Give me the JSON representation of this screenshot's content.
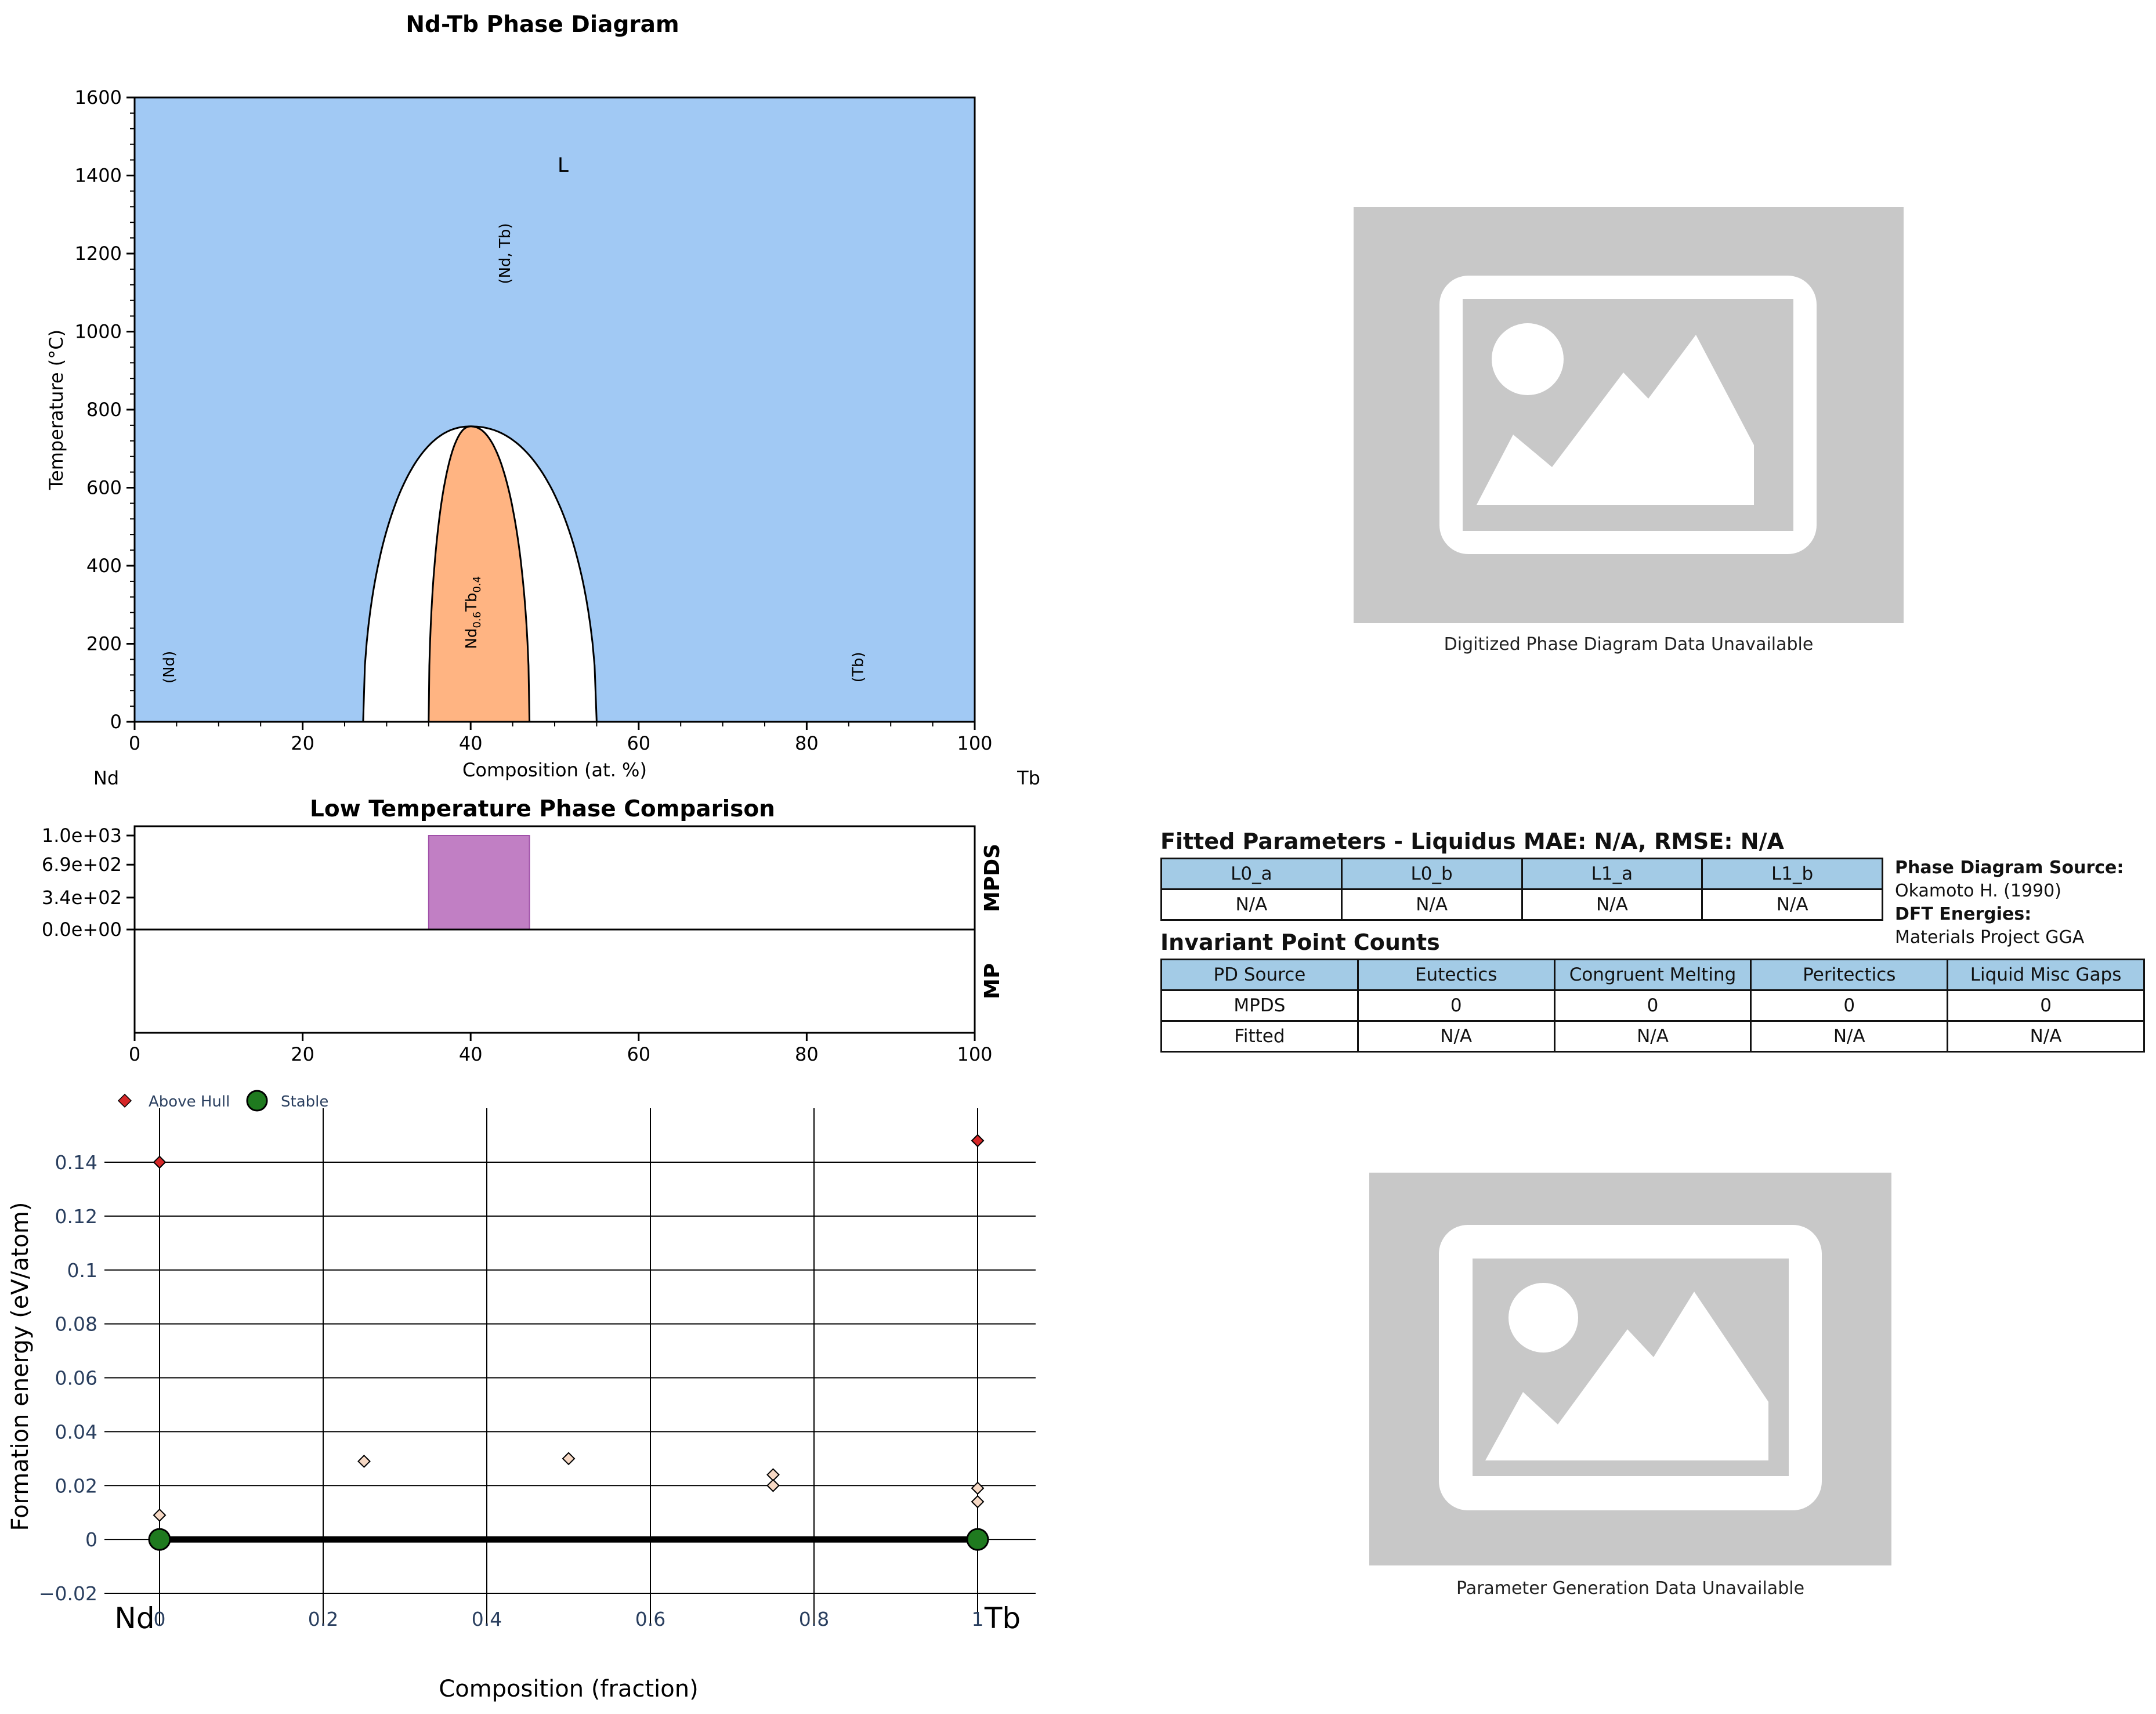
{
  "chart_data": [
    {
      "type": "phase_diagram",
      "title": "Nd-Tb Phase Diagram",
      "xlabel": "Composition (at. %)",
      "ylabel": "Temperature (°C)",
      "xlim": [
        0,
        100
      ],
      "ylim": [
        0,
        1600
      ],
      "x_ticks": [
        "0",
        "20",
        "40",
        "60",
        "80",
        "100"
      ],
      "y_ticks": [
        "0",
        "200",
        "400",
        "600",
        "800",
        "1000",
        "1200",
        "1400",
        "1600"
      ],
      "left_element": "Nd",
      "right_element": "Tb",
      "regions": [
        {
          "label": "L",
          "color": "#a1c9f4",
          "label_at": [
            51,
            1410
          ]
        },
        {
          "label": "(Nd, Tb)",
          "color": "#a1c9f4",
          "label_at": [
            44,
            1200
          ]
        },
        {
          "label": "(Nd)",
          "color": "#a1c9f4",
          "label_at": [
            4,
            140
          ]
        },
        {
          "label": "(Tb)",
          "color": "#a1c9f4",
          "label_at": [
            86,
            140
          ]
        },
        {
          "label_base": "Nd",
          "label_sub1": "0.6",
          "label_mid": "Tb",
          "label_sub2": "0.4",
          "color": "#ffb482",
          "label_at": [
            40,
            280
          ]
        }
      ],
      "miscibility_gap": {
        "x_left": 27.2,
        "x_right": 55.0,
        "x_peak": 40,
        "t_peak": 757
      },
      "compound_region": {
        "x_left": 35.0,
        "x_right": 47.0,
        "x_peak": 40,
        "t_peak": 757
      }
    },
    {
      "type": "bar",
      "title": "Low Temperature Phase Comparison",
      "xlim": [
        0,
        100
      ],
      "x_ticks": [
        "0",
        "20",
        "40",
        "60",
        "80",
        "100"
      ],
      "y_ticks": [
        "1.0e+03",
        "6.9e+02",
        "3.4e+02",
        "0.0e+00"
      ],
      "rows": [
        "MPDS",
        "MP"
      ],
      "bars": [
        {
          "row": "MPDS",
          "x_start": 35.0,
          "x_end": 47.0,
          "value": 1000,
          "color": "#c17fc4"
        }
      ]
    },
    {
      "type": "scatter",
      "xlabel": "Composition (fraction)",
      "ylabel": "Formation energy (eV/atom)",
      "xlim": [
        -0.06,
        1.06
      ],
      "ylim": [
        -0.02,
        0.15
      ],
      "x_ticks": [
        "0",
        "0.2",
        "0.4",
        "0.6",
        "0.8",
        "1"
      ],
      "y_ticks": [
        "−0.02",
        "0",
        "0.02",
        "0.04",
        "0.06",
        "0.08",
        "0.1",
        "0.12",
        "0.14"
      ],
      "left_element": "Nd",
      "right_element": "Tb",
      "legend": [
        {
          "name": "Above Hull",
          "color": "#d62728"
        },
        {
          "name": "Stable",
          "color": "#1f7a1f"
        }
      ],
      "legend_position": "top-left",
      "hull_line": [
        [
          0,
          0
        ],
        [
          1,
          0
        ]
      ],
      "stable": [
        [
          0,
          0
        ],
        [
          1,
          0
        ]
      ],
      "above_hull_red": [
        [
          0,
          0.14
        ],
        [
          1,
          0.148
        ]
      ],
      "above_hull_light": [
        [
          0,
          0.009
        ],
        [
          0.25,
          0.029
        ],
        [
          0.5,
          0.03
        ],
        [
          0.75,
          0.024
        ],
        [
          0.75,
          0.02
        ],
        [
          1,
          0.019
        ],
        [
          1,
          0.014
        ]
      ]
    }
  ],
  "placeholders": [
    {
      "caption": "Digitized Phase Diagram Data Unavailable",
      "icon": "image-placeholder-icon"
    },
    {
      "caption": "Parameter Generation Data Unavailable",
      "icon": "image-placeholder-icon"
    }
  ],
  "fitted": {
    "title": "Fitted Parameters - Liquidus MAE: N/A, RMSE: N/A",
    "headers": [
      "L0_a",
      "L0_b",
      "L1_a",
      "L1_b"
    ],
    "values": [
      "N/A",
      "N/A",
      "N/A",
      "N/A"
    ]
  },
  "source": {
    "pd_label": "Phase Diagram Source:",
    "pd_value": "Okamoto H. (1990)",
    "dft_label": "DFT Energies:",
    "dft_value": "Materials Project GGA"
  },
  "invariant": {
    "title": "Invariant Point Counts",
    "headers": [
      "PD Source",
      "Eutectics",
      "Congruent Melting",
      "Peritectics",
      "Liquid Misc Gaps"
    ],
    "rows": [
      [
        "MPDS",
        "0",
        "0",
        "0",
        "0"
      ],
      [
        "Fitted",
        "N/A",
        "N/A",
        "N/A",
        "N/A"
      ]
    ]
  },
  "colors": {
    "liquid": "#a1c9f4",
    "compound": "#ffb482",
    "bar": "#c17fc4",
    "table_header": "#a3cbe6"
  }
}
